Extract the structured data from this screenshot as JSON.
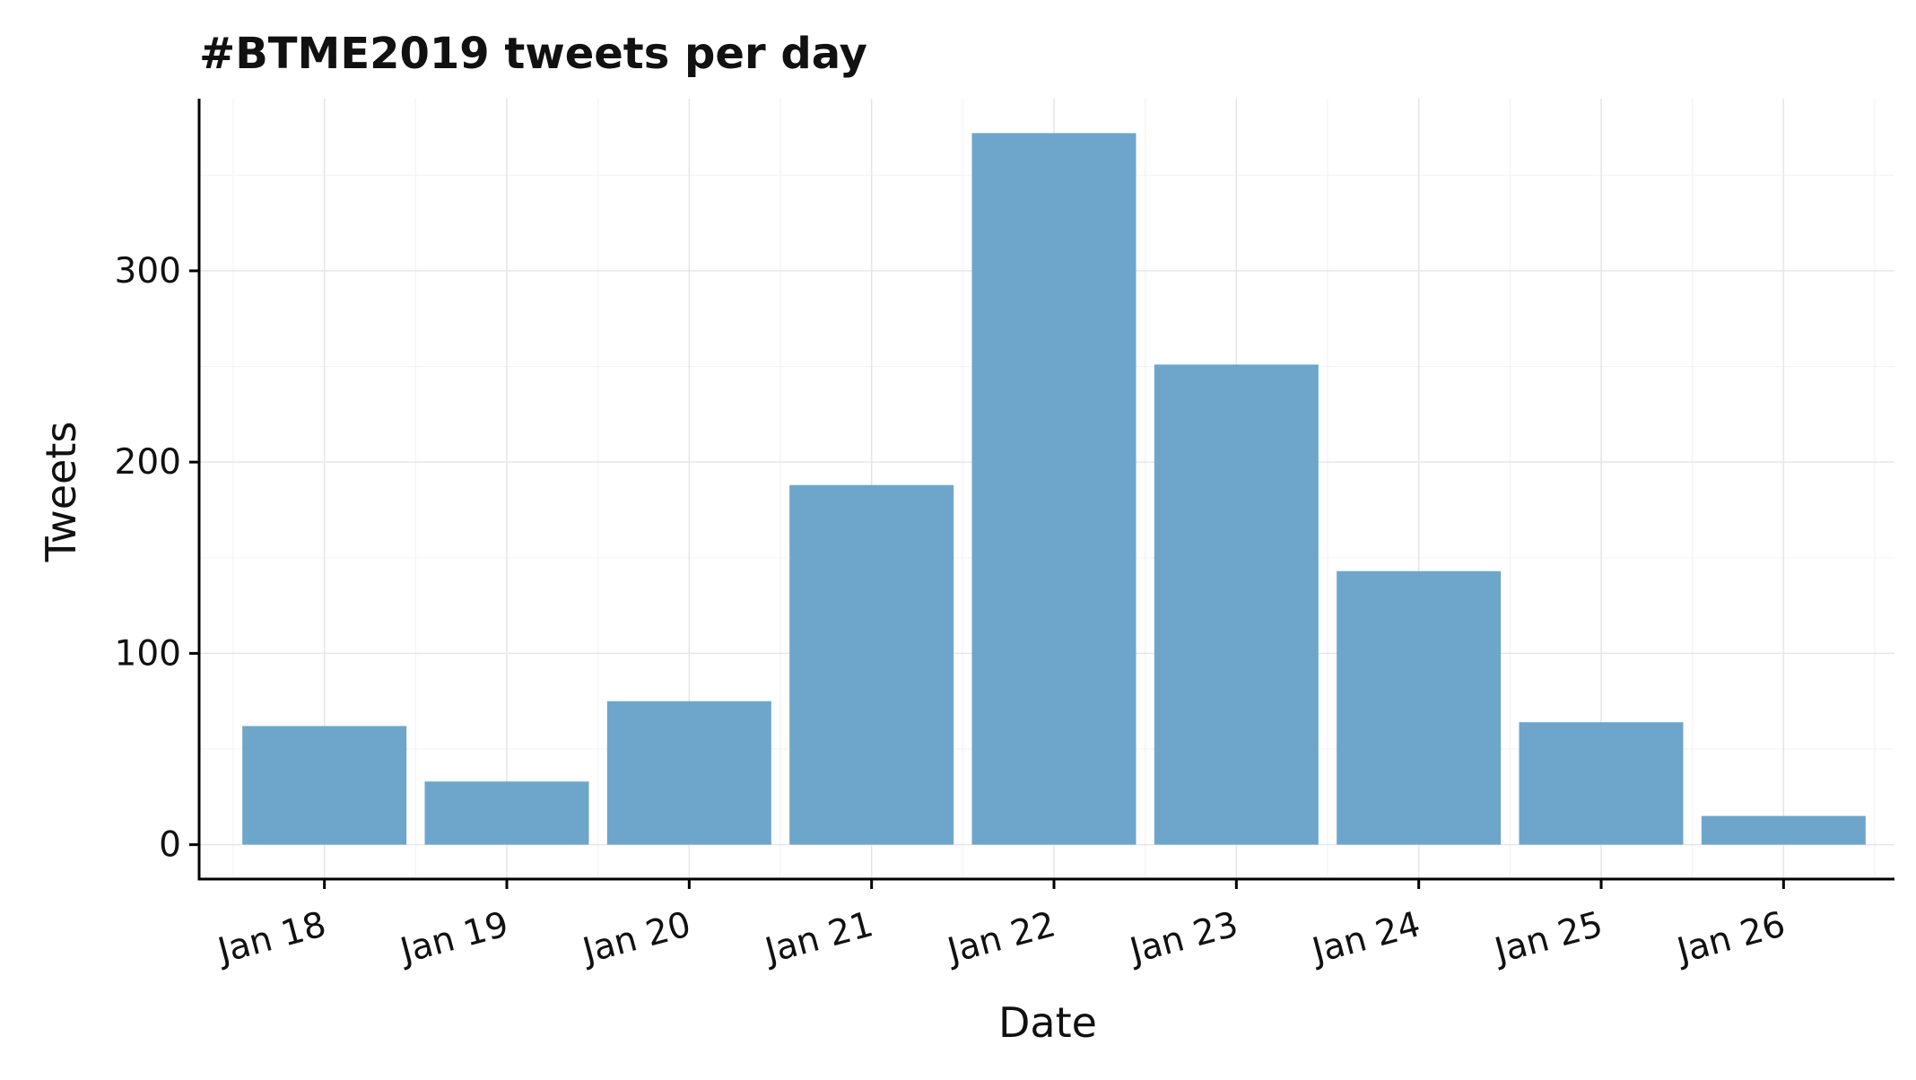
{
  "chart_data": {
    "type": "bar",
    "title": "#BTME2019 tweets per day",
    "xlabel": "Date",
    "ylabel": "Tweets",
    "categories": [
      "Jan 18",
      "Jan 19",
      "Jan 20",
      "Jan 21",
      "Jan 22",
      "Jan 23",
      "Jan 24",
      "Jan 25",
      "Jan 26"
    ],
    "values": [
      62,
      33,
      75,
      188,
      372,
      251,
      143,
      64,
      15
    ],
    "ylim": [
      -18,
      390
    ],
    "yticks": [
      0,
      100,
      200,
      300
    ],
    "grid": true,
    "bar_color": "#6ea6cb",
    "x_tick_rotation_deg": -15
  }
}
